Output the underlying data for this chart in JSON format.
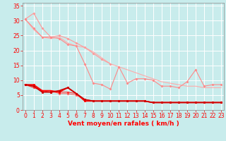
{
  "title": "",
  "xlabel": "Vent moyen/en rafales ( km/h )",
  "ylabel": "",
  "bg_color": "#c8ecec",
  "grid_color": "#ffffff",
  "x": [
    0,
    1,
    2,
    3,
    4,
    5,
    6,
    7,
    8,
    9,
    10,
    11,
    12,
    13,
    14,
    15,
    16,
    17,
    18,
    19,
    20,
    21,
    22,
    23
  ],
  "series": [
    {
      "color": "#ffaaaa",
      "marker": null,
      "markersize": 0,
      "linewidth": 0.8,
      "data": [
        30.5,
        27.0,
        24.5,
        24.0,
        24.5,
        22.5,
        21.5,
        21.0,
        19.5,
        17.5,
        15.5,
        14.5,
        13.5,
        12.5,
        11.5,
        10.5,
        9.5,
        9.0,
        8.5,
        8.0,
        8.0,
        7.5,
        7.5,
        7.5
      ]
    },
    {
      "color": "#ff9999",
      "marker": "D",
      "markersize": 1.5,
      "linewidth": 0.8,
      "data": [
        30.5,
        32.5,
        27.5,
        24.5,
        25.0,
        24.0,
        22.5,
        21.0,
        19.0,
        17.0,
        15.5,
        null,
        null,
        null,
        null,
        null,
        null,
        null,
        null,
        null,
        null,
        null,
        null,
        null
      ]
    },
    {
      "color": "#ff8888",
      "marker": "D",
      "markersize": 1.5,
      "linewidth": 0.8,
      "data": [
        30.5,
        27.5,
        24.5,
        24.5,
        24.0,
        22.0,
        21.5,
        15.5,
        9.0,
        8.5,
        7.0,
        14.5,
        9.0,
        10.5,
        10.5,
        10.0,
        8.0,
        8.0,
        7.5,
        9.5,
        13.5,
        8.0,
        8.5,
        8.5
      ]
    },
    {
      "color": "#ff6666",
      "marker": "s",
      "markersize": 1.5,
      "linewidth": 0.8,
      "data": [
        8.5,
        8.0,
        6.5,
        6.5,
        5.5,
        5.5,
        5.0,
        3.5,
        3.0,
        3.0,
        3.0,
        3.0,
        3.0,
        3.0,
        3.0,
        2.5,
        2.5,
        2.5,
        2.5,
        2.5,
        2.5,
        2.5,
        2.5,
        2.5
      ]
    },
    {
      "color": "#ff3333",
      "marker": "D",
      "markersize": 1.5,
      "linewidth": 0.8,
      "data": [
        8.5,
        7.5,
        6.5,
        6.0,
        6.0,
        6.0,
        5.5,
        3.5,
        3.0,
        3.0,
        3.0,
        3.0,
        3.0,
        3.0,
        3.0,
        2.5,
        2.5,
        2.5,
        2.5,
        2.5,
        2.5,
        2.5,
        2.5,
        2.5
      ]
    },
    {
      "color": "#ff0000",
      "marker": "s",
      "markersize": 2.0,
      "linewidth": 1.2,
      "data": [
        8.5,
        8.5,
        6.5,
        6.5,
        6.0,
        7.5,
        5.5,
        3.0,
        3.0,
        3.0,
        3.0,
        3.0,
        3.0,
        3.0,
        3.0,
        2.5,
        2.5,
        2.5,
        2.5,
        2.5,
        2.5,
        2.5,
        2.5,
        2.5
      ]
    },
    {
      "color": "#cc0000",
      "marker": "s",
      "markersize": 2.0,
      "linewidth": 1.2,
      "data": [
        8.5,
        8.0,
        6.0,
        6.0,
        6.5,
        7.5,
        5.5,
        3.5,
        3.0,
        3.0,
        3.0,
        3.0,
        3.0,
        3.0,
        3.0,
        2.5,
        2.5,
        2.5,
        2.5,
        2.5,
        2.5,
        2.5,
        2.5,
        2.5
      ]
    }
  ],
  "xlim": [
    -0.3,
    23.3
  ],
  "ylim": [
    0,
    36
  ],
  "yticks": [
    0,
    5,
    10,
    15,
    20,
    25,
    30,
    35
  ],
  "xticks": [
    0,
    1,
    2,
    3,
    4,
    5,
    6,
    7,
    8,
    9,
    10,
    11,
    12,
    13,
    14,
    15,
    16,
    17,
    18,
    19,
    20,
    21,
    22,
    23
  ],
  "tick_label_color": "#ff0000",
  "xlabel_color": "#ff0000",
  "xlabel_fontsize": 6.5,
  "tick_fontsize": 5.5,
  "axis_color": "#888888"
}
